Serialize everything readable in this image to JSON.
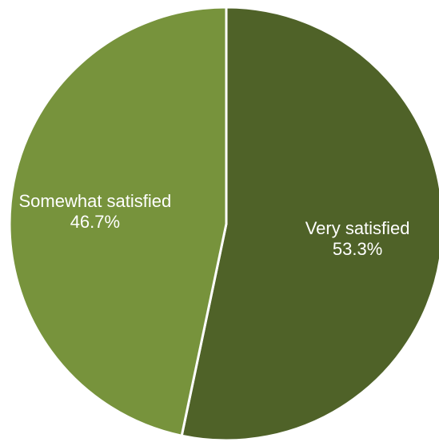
{
  "chart_data": {
    "type": "pie",
    "categories": [
      "Very satisfied",
      "Somewhat satisfied"
    ],
    "values": [
      53.3,
      46.7
    ],
    "value_labels": [
      "53.3%",
      "46.7%"
    ],
    "colors": [
      "#4f6228",
      "#77933c"
    ],
    "separator_color": "#ffffff",
    "start_angle": "12 o'clock",
    "direction": "clockwise",
    "title": "",
    "legend": "none"
  }
}
